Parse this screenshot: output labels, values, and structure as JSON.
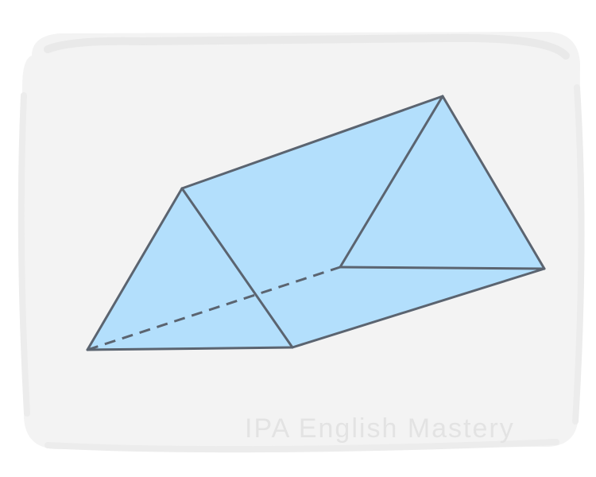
{
  "watermark": {
    "text": "IPA English Mastery"
  },
  "colors": {
    "backdrop": "#f3f3f3",
    "backdrop_edge": "#e9e9e9",
    "face_fill": "#b3dffc",
    "edge_stroke": "#5b6470",
    "watermark_text": "#e3e3e3"
  },
  "figure": {
    "shape": "triangular prism",
    "hidden_edge_style": "dashed"
  }
}
